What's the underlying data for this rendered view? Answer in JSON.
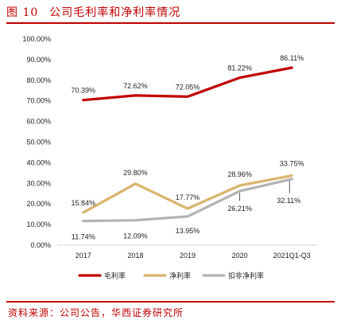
{
  "figure": {
    "number": "图 10",
    "title": "公司毛利率和净利率情况",
    "source": "资料来源：公司公告，华西证券研究所"
  },
  "chart_data": {
    "type": "line",
    "categories": [
      "2017",
      "2018",
      "2019",
      "2020",
      "2021Q1-Q3"
    ],
    "y_ticks": [
      "100.00%",
      "90.00%",
      "80.00%",
      "70.00%",
      "60.00%",
      "50.00%",
      "40.00%",
      "30.00%",
      "20.00%",
      "10.00%",
      "0.00%"
    ],
    "ylim": [
      0,
      100
    ],
    "grid": false,
    "legend_position": "bottom",
    "series": [
      {
        "name": "毛利率",
        "color": "#c00000",
        "values": [
          70.39,
          72.62,
          72.05,
          81.22,
          86.11
        ],
        "labels": [
          "70.39%",
          "72.62%",
          "72.05%",
          "81.22%",
          "86.11%"
        ]
      },
      {
        "name": "净利率",
        "color": "#d9b46c",
        "values": [
          15.84,
          29.8,
          17.77,
          28.96,
          33.75
        ],
        "labels": [
          "15.84%",
          "29.80%",
          "17.77%",
          "28.96%",
          "33.75%"
        ]
      },
      {
        "name": "扣非净利率",
        "color": "#b3b3b3",
        "values": [
          11.74,
          12.09,
          13.95,
          26.21,
          32.11
        ],
        "labels": [
          "11.74%",
          "12.09%",
          "13.95%",
          "26.21%",
          "32.11%"
        ]
      }
    ]
  }
}
